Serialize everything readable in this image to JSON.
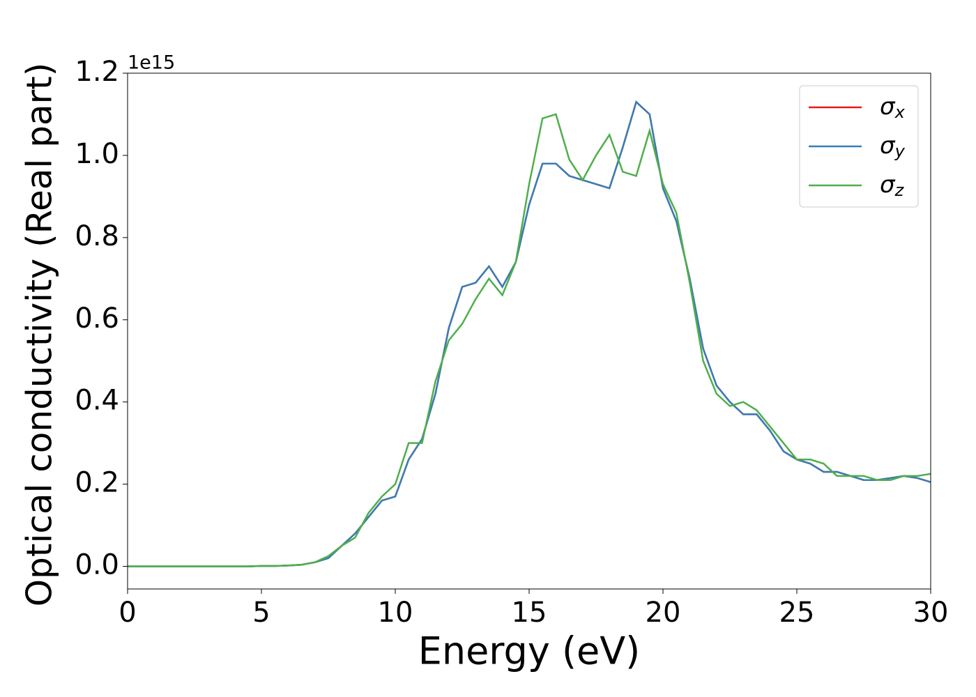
{
  "chart_data": {
    "type": "line",
    "xlabel": "Energy (eV)",
    "ylabel": "Optical conductivity (Real part)",
    "y_offset_label": "1e15",
    "x": [
      0,
      0.5,
      1,
      1.5,
      2,
      2.5,
      3,
      3.5,
      4,
      4.5,
      5,
      5.5,
      6,
      6.5,
      7,
      7.5,
      8,
      8.5,
      9,
      9.5,
      10,
      10.5,
      11,
      11.5,
      12,
      12.5,
      13,
      13.5,
      14,
      14.5,
      15,
      15.5,
      16,
      16.5,
      17,
      17.5,
      18,
      18.5,
      19,
      19.5,
      20,
      20.5,
      21,
      21.5,
      22,
      22.5,
      23,
      23.5,
      24,
      24.5,
      25,
      25.5,
      26,
      26.5,
      27,
      27.5,
      28,
      28.5,
      29,
      29.5,
      30
    ],
    "series": [
      {
        "name": "σx",
        "color": "#e41a1c",
        "values": [
          0,
          0,
          0,
          0,
          0,
          0,
          0,
          0,
          0,
          0,
          0.001,
          0.001,
          0.002,
          0.004,
          0.01,
          0.02,
          0.05,
          0.08,
          0.12,
          0.16,
          0.17,
          0.26,
          0.31,
          0.42,
          0.58,
          0.68,
          0.69,
          0.73,
          0.68,
          0.74,
          0.88,
          0.98,
          0.98,
          0.95,
          0.94,
          0.93,
          0.92,
          1.02,
          1.13,
          1.1,
          0.92,
          0.84,
          0.7,
          0.53,
          0.44,
          0.4,
          0.37,
          0.37,
          0.33,
          0.28,
          0.26,
          0.25,
          0.23,
          0.23,
          0.22,
          0.21,
          0.21,
          0.215,
          0.22,
          0.215,
          0.205
        ]
      },
      {
        "name": "σy",
        "color": "#377eb8",
        "values": [
          0,
          0,
          0,
          0,
          0,
          0,
          0,
          0,
          0,
          0,
          0.001,
          0.001,
          0.002,
          0.004,
          0.01,
          0.02,
          0.05,
          0.08,
          0.12,
          0.16,
          0.17,
          0.26,
          0.31,
          0.42,
          0.58,
          0.68,
          0.69,
          0.73,
          0.68,
          0.74,
          0.88,
          0.98,
          0.98,
          0.95,
          0.94,
          0.93,
          0.92,
          1.02,
          1.13,
          1.1,
          0.92,
          0.84,
          0.7,
          0.53,
          0.44,
          0.4,
          0.37,
          0.37,
          0.33,
          0.28,
          0.26,
          0.25,
          0.23,
          0.23,
          0.22,
          0.21,
          0.21,
          0.215,
          0.22,
          0.215,
          0.205
        ]
      },
      {
        "name": "σz",
        "color": "#4daf4a",
        "values": [
          0,
          0,
          0,
          0,
          0,
          0,
          0,
          0,
          0,
          0,
          0.001,
          0.001,
          0.002,
          0.004,
          0.01,
          0.025,
          0.05,
          0.07,
          0.13,
          0.17,
          0.2,
          0.3,
          0.3,
          0.45,
          0.55,
          0.59,
          0.65,
          0.7,
          0.66,
          0.74,
          0.93,
          1.09,
          1.1,
          0.99,
          0.94,
          1.0,
          1.05,
          0.96,
          0.95,
          1.06,
          0.93,
          0.86,
          0.69,
          0.5,
          0.42,
          0.39,
          0.4,
          0.38,
          0.34,
          0.3,
          0.26,
          0.26,
          0.25,
          0.22,
          0.22,
          0.22,
          0.21,
          0.21,
          0.22,
          0.22,
          0.225
        ]
      }
    ],
    "xlim": [
      0,
      30
    ],
    "xticks": [
      0,
      5,
      10,
      15,
      20,
      25,
      30
    ],
    "ylim": [
      -0.055,
      1.2
    ],
    "yticks": [
      {
        "value": 0,
        "label": "0.0"
      },
      0.2,
      0.4,
      0.6,
      0.8,
      {
        "value": 1,
        "label": "1.0"
      },
      1.2
    ],
    "grid": false,
    "legend": "upper right"
  }
}
